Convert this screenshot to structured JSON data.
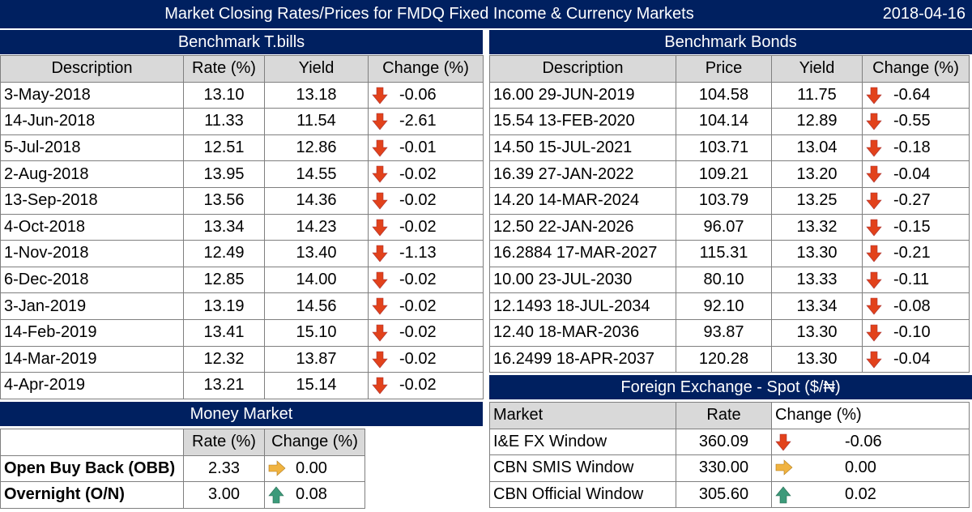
{
  "header": {
    "title": "Market Closing Rates/Prices for FMDQ Fixed Income & Currency Markets",
    "date": "2018-04-16"
  },
  "tbills": {
    "heading": "Benchmark T.bills",
    "columns": [
      "Description",
      "Rate (%)",
      "Yield",
      "Change (%)"
    ],
    "rows": [
      {
        "desc": "3-May-2018",
        "rate": "13.10",
        "yield": "13.18",
        "change": "-0.06",
        "dir": "down"
      },
      {
        "desc": "14-Jun-2018",
        "rate": "11.33",
        "yield": "11.54",
        "change": "-2.61",
        "dir": "down"
      },
      {
        "desc": "5-Jul-2018",
        "rate": "12.51",
        "yield": "12.86",
        "change": "-0.01",
        "dir": "down"
      },
      {
        "desc": "2-Aug-2018",
        "rate": "13.95",
        "yield": "14.55",
        "change": "-0.02",
        "dir": "down"
      },
      {
        "desc": "13-Sep-2018",
        "rate": "13.56",
        "yield": "14.36",
        "change": "-0.02",
        "dir": "down"
      },
      {
        "desc": "4-Oct-2018",
        "rate": "13.34",
        "yield": "14.23",
        "change": "-0.02",
        "dir": "down"
      },
      {
        "desc": "1-Nov-2018",
        "rate": "12.49",
        "yield": "13.40",
        "change": "-1.13",
        "dir": "down"
      },
      {
        "desc": "6-Dec-2018",
        "rate": "12.85",
        "yield": "14.00",
        "change": "-0.02",
        "dir": "down"
      },
      {
        "desc": "3-Jan-2019",
        "rate": "13.19",
        "yield": "14.56",
        "change": "-0.02",
        "dir": "down"
      },
      {
        "desc": "14-Feb-2019",
        "rate": "13.41",
        "yield": "15.10",
        "change": "-0.02",
        "dir": "down"
      },
      {
        "desc": "14-Mar-2019",
        "rate": "12.32",
        "yield": "13.87",
        "change": "-0.02",
        "dir": "down"
      },
      {
        "desc": "4-Apr-2019",
        "rate": "13.21",
        "yield": "15.14",
        "change": "-0.02",
        "dir": "down"
      }
    ]
  },
  "bonds": {
    "heading": "Benchmark Bonds",
    "columns": [
      "Description",
      "Price",
      "Yield",
      "Change (%)"
    ],
    "rows": [
      {
        "desc": "16.00 29-JUN-2019",
        "price": "104.58",
        "yield": "11.75",
        "change": "-0.64",
        "dir": "down"
      },
      {
        "desc": "15.54 13-FEB-2020",
        "price": "104.14",
        "yield": "12.89",
        "change": "-0.55",
        "dir": "down"
      },
      {
        "desc": "14.50 15-JUL-2021",
        "price": "103.71",
        "yield": "13.04",
        "change": "-0.18",
        "dir": "down"
      },
      {
        "desc": "16.39 27-JAN-2022",
        "price": "109.21",
        "yield": "13.20",
        "change": "-0.04",
        "dir": "down"
      },
      {
        "desc": "14.20 14-MAR-2024",
        "price": "103.79",
        "yield": "13.25",
        "change": "-0.27",
        "dir": "down"
      },
      {
        "desc": "12.50 22-JAN-2026",
        "price": "96.07",
        "yield": "13.32",
        "change": "-0.15",
        "dir": "down"
      },
      {
        "desc": "16.2884 17-MAR-2027",
        "price": "115.31",
        "yield": "13.30",
        "change": "-0.21",
        "dir": "down"
      },
      {
        "desc": "10.00 23-JUL-2030",
        "price": "80.10",
        "yield": "13.33",
        "change": "-0.11",
        "dir": "down"
      },
      {
        "desc": "12.1493 18-JUL-2034",
        "price": "92.10",
        "yield": "13.34",
        "change": "-0.08",
        "dir": "down"
      },
      {
        "desc": "12.40 18-MAR-2036",
        "price": "93.87",
        "yield": "13.30",
        "change": "-0.10",
        "dir": "down"
      },
      {
        "desc": "16.2499 18-APR-2037",
        "price": "120.28",
        "yield": "13.30",
        "change": "-0.04",
        "dir": "down"
      }
    ]
  },
  "money": {
    "heading": "Money Market",
    "columns": [
      "",
      "Rate (%)",
      "Change (%)"
    ],
    "rows": [
      {
        "desc": "Open Buy Back (OBB)",
        "rate": "2.33",
        "change": "0.00",
        "dir": "flat"
      },
      {
        "desc": "Overnight (O/N)",
        "rate": "3.00",
        "change": "0.08",
        "dir": "up"
      }
    ]
  },
  "fx": {
    "heading": "Foreign Exchange - Spot ($/₦)",
    "columns": [
      "Market",
      "Rate",
      "Change (%)"
    ],
    "rows": [
      {
        "desc": "I&E FX Window",
        "rate": "360.09",
        "change": "-0.06",
        "dir": "down"
      },
      {
        "desc": "CBN SMIS Window",
        "rate": "330.00",
        "change": "0.00",
        "dir": "flat"
      },
      {
        "desc": "CBN Official Window",
        "rate": "305.60",
        "change": "0.02",
        "dir": "up"
      }
    ]
  },
  "colors": {
    "header_bg": "#002060",
    "col_header_bg": "#d9d9d9",
    "down": "#e2421b",
    "up": "#3c9a7a",
    "flat": "#f0b340"
  },
  "icons": {
    "down": "red-down-arrow-icon",
    "up": "green-up-arrow-icon",
    "flat": "orange-right-arrow-icon"
  }
}
